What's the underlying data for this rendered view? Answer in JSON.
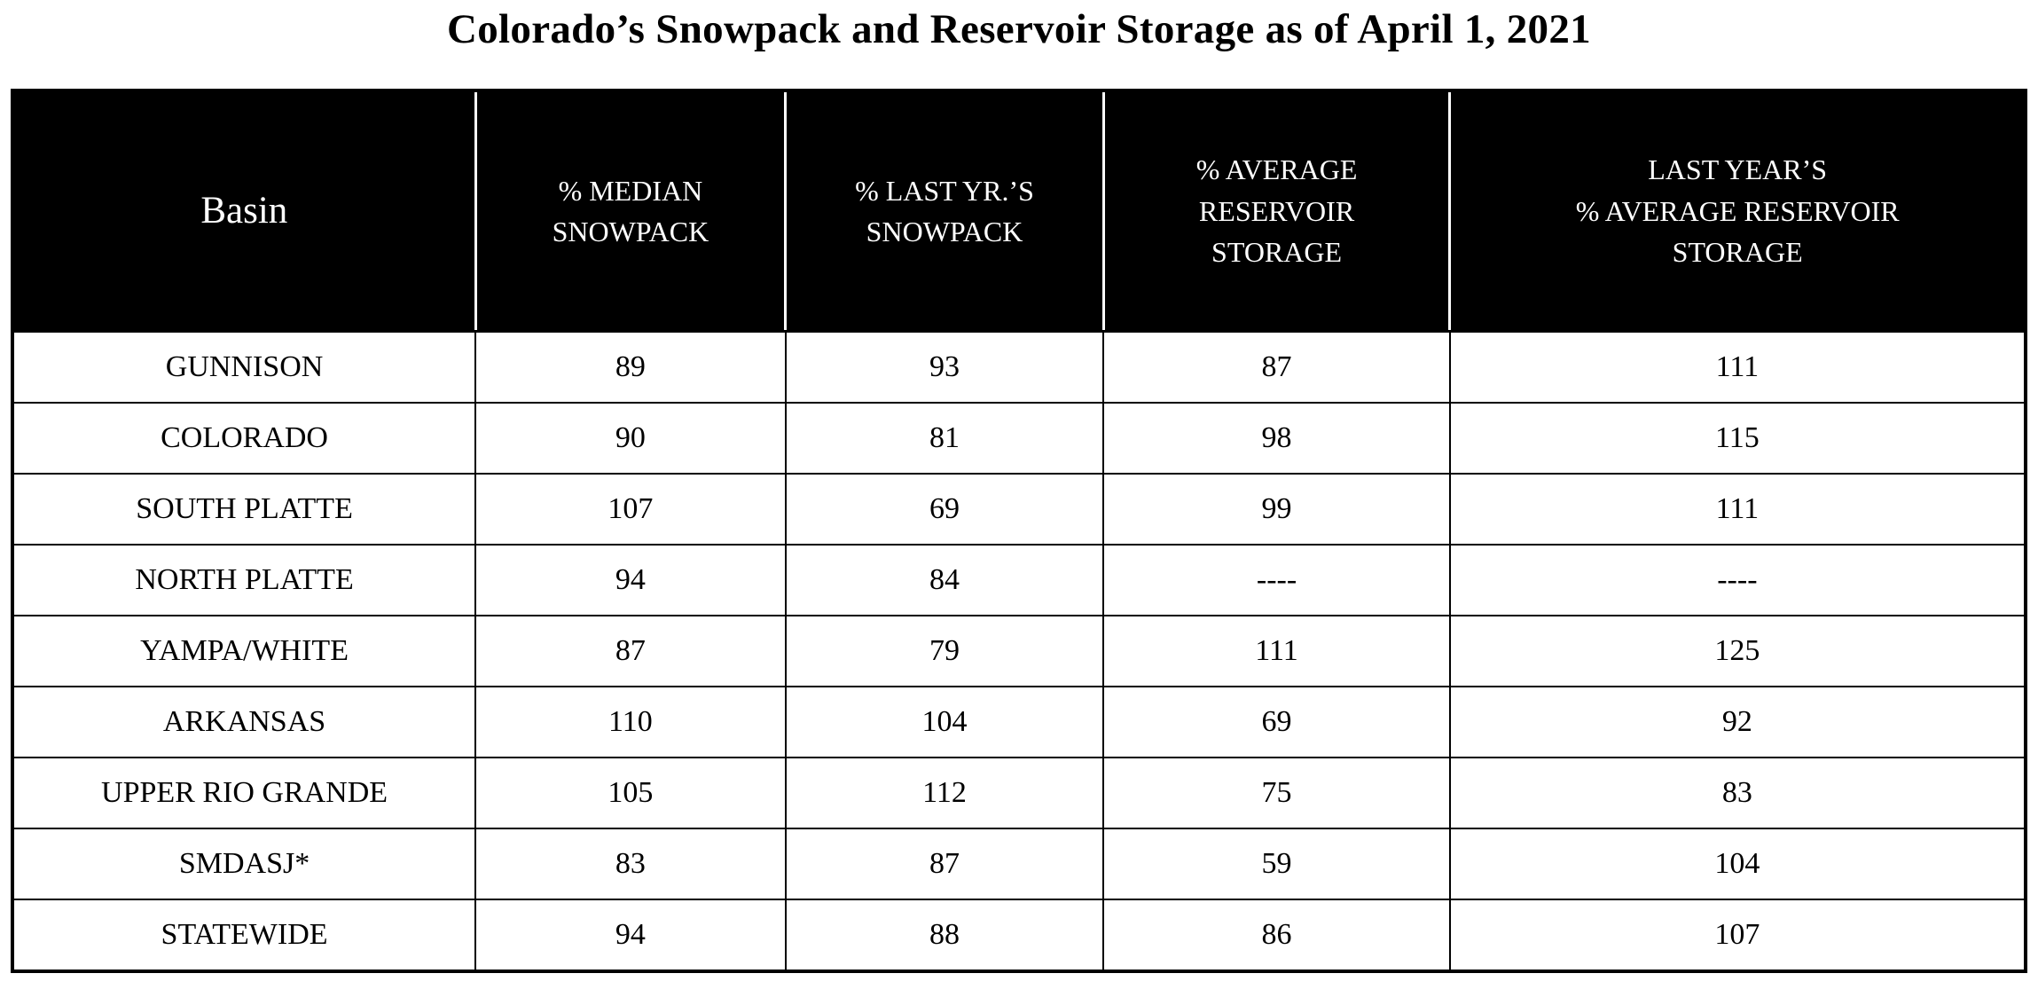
{
  "page": {
    "title": "Colorado’s Snowpack and Reservoir Storage as of April 1, 2021"
  },
  "colors": {
    "background": "#FFFFFF",
    "header_background": "#000000",
    "header_text": "#FFFFFF",
    "body_text": "#000000",
    "border": "#000000"
  },
  "table": {
    "header_display": [
      "Basin",
      "% MEDIAN\nSNOWPACK",
      "% LAST YR.’S\nSNOWPACK",
      "% AVERAGE\nRESERVOIR\nSTORAGE",
      "LAST YEAR’S\n% AVERAGE RESERVOIR\nSTORAGE"
    ]
  },
  "chart_data": {
    "type": "table",
    "title": "Colorado’s Snowpack and Reservoir Storage as of April 1, 2021",
    "columns": [
      "Basin",
      "% MEDIAN SNOWPACK",
      "% LAST YR.’S SNOWPACK",
      "% AVERAGE RESERVOIR STORAGE",
      "LAST YEAR’S % AVERAGE RESERVOIR STORAGE"
    ],
    "rows": [
      [
        "GUNNISON",
        "89",
        "93",
        "87",
        "111"
      ],
      [
        "COLORADO",
        "90",
        "81",
        "98",
        "115"
      ],
      [
        "SOUTH PLATTE",
        "107",
        "69",
        "99",
        "111"
      ],
      [
        "NORTH PLATTE",
        "94",
        "84",
        "----",
        "----"
      ],
      [
        "YAMPA/WHITE",
        "87",
        "79",
        "111",
        "125"
      ],
      [
        "ARKANSAS",
        "110",
        "104",
        "69",
        "92"
      ],
      [
        "UPPER RIO GRANDE",
        "105",
        "112",
        "75",
        "83"
      ],
      [
        "SMDASJ*",
        "83",
        "87",
        "59",
        "104"
      ],
      [
        "STATEWIDE",
        "94",
        "88",
        "86",
        "107"
      ]
    ]
  }
}
